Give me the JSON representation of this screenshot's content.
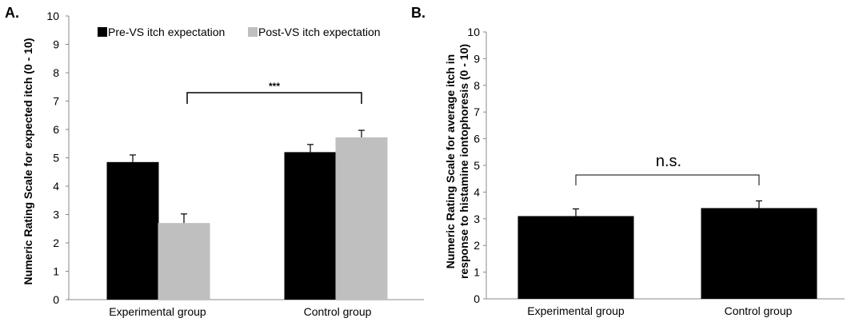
{
  "chart_data": [
    {
      "type": "bar",
      "panel": "A.",
      "ylabel": "Numeric Rating Scale for expected itch (0 - 10)",
      "xlabel": "",
      "ylim": [
        0,
        10
      ],
      "yticks": [
        "0",
        "1",
        "2",
        "3",
        "4",
        "5",
        "6",
        "7",
        "8",
        "9",
        "10"
      ],
      "categories": [
        "Experimental group",
        "Control group"
      ],
      "series": [
        {
          "name": "Pre-VS itch expectation",
          "color": "#000000",
          "values": [
            4.85,
            5.2
          ],
          "errors": [
            0.25,
            0.27
          ]
        },
        {
          "name": "Post-VS itch expectation",
          "color": "#bfbfbf",
          "values": [
            2.7,
            5.72
          ],
          "errors": [
            0.32,
            0.25
          ]
        }
      ],
      "significance": "***",
      "legend": "top-left",
      "grid": false
    },
    {
      "type": "bar",
      "panel": "B.",
      "ylabel_line1": "Numeric Rating Scale for average itch in",
      "ylabel_line2": "response to histamine iontophoresis (0 - 10)",
      "xlabel": "",
      "ylim": [
        0,
        10
      ],
      "yticks": [
        "0",
        "1",
        "2",
        "3",
        "4",
        "5",
        "6",
        "7",
        "8",
        "9",
        "10"
      ],
      "categories": [
        "Experimental group",
        "Control group"
      ],
      "series": [
        {
          "color": "#000000",
          "values": [
            3.1,
            3.4
          ],
          "errors": [
            0.27,
            0.27
          ]
        }
      ],
      "significance": "n.s.",
      "grid": false
    }
  ]
}
